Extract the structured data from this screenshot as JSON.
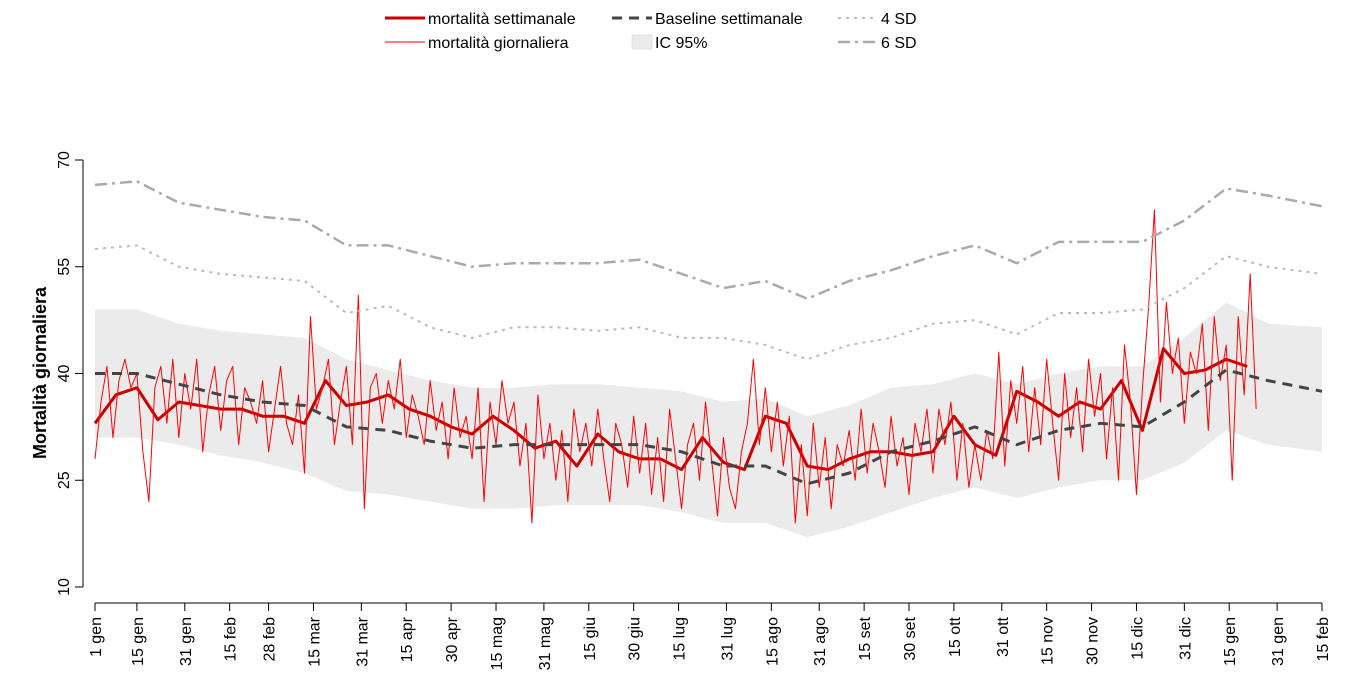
{
  "chart_data": {
    "type": "line",
    "ylabel": "Mortalità giornaliera",
    "xlim": [
      0,
      410
    ],
    "ylim": [
      10,
      70
    ],
    "yticks": [
      10,
      25,
      40,
      55,
      70
    ],
    "xticks": [
      {
        "value": 0,
        "label": "1 gen"
      },
      {
        "value": 14,
        "label": "15 gen"
      },
      {
        "value": 30,
        "label": "31 gen"
      },
      {
        "value": 45,
        "label": "15 feb"
      },
      {
        "value": 58,
        "label": "28 feb"
      },
      {
        "value": 73,
        "label": "15 mar"
      },
      {
        "value": 89,
        "label": "31 mar"
      },
      {
        "value": 104,
        "label": "15 apr"
      },
      {
        "value": 119,
        "label": "30 apr"
      },
      {
        "value": 134,
        "label": "15 mag"
      },
      {
        "value": 150,
        "label": "31 mag"
      },
      {
        "value": 165,
        "label": "15 giu"
      },
      {
        "value": 180,
        "label": "30 giu"
      },
      {
        "value": 195,
        "label": "15 lug"
      },
      {
        "value": 211,
        "label": "31 lug"
      },
      {
        "value": 226,
        "label": "15 ago"
      },
      {
        "value": 242,
        "label": "31 ago"
      },
      {
        "value": 257,
        "label": "15 set"
      },
      {
        "value": 272,
        "label": "30 set"
      },
      {
        "value": 287,
        "label": "15 ott"
      },
      {
        "value": 303,
        "label": "31 ott"
      },
      {
        "value": 318,
        "label": "15 nov"
      },
      {
        "value": 333,
        "label": "30 nov"
      },
      {
        "value": 348,
        "label": "15 dic"
      },
      {
        "value": 364,
        "label": "31 dic"
      },
      {
        "value": 379,
        "label": "15 gen"
      },
      {
        "value": 395,
        "label": "31 gen"
      },
      {
        "value": 410,
        "label": "15 feb"
      }
    ],
    "series": [
      {
        "name": "mortalità settimanale",
        "color": "#cc0000",
        "dash": "solid",
        "lwd": 3,
        "x": [
          0,
          7,
          14,
          21,
          28,
          35,
          42,
          49,
          56,
          63,
          70,
          77,
          84,
          91,
          98,
          105,
          112,
          119,
          126,
          133,
          140,
          147,
          154,
          161,
          168,
          175,
          182,
          189,
          196,
          203,
          210,
          217,
          224,
          231,
          238,
          245,
          252,
          259,
          266,
          273,
          280,
          287,
          294,
          301,
          308,
          315,
          322,
          329,
          336,
          343,
          350,
          357,
          364,
          371,
          378,
          385
        ],
        "values": [
          33,
          37,
          38,
          33.5,
          36,
          35.5,
          35,
          35,
          34,
          34,
          33,
          39,
          35.5,
          36,
          37,
          35,
          34,
          32.5,
          31.5,
          34,
          32,
          29.5,
          30.5,
          27,
          31.5,
          29,
          28,
          28,
          26.5,
          31,
          27.5,
          26.5,
          34,
          33,
          27,
          26.5,
          28,
          29,
          29,
          28.5,
          29,
          34,
          30,
          28.5,
          37.5,
          36,
          34,
          36,
          35,
          39,
          32,
          43.5,
          40,
          40.5,
          42,
          41
        ]
      },
      {
        "name": "mortalità giornaliera",
        "color": "#ff0000",
        "dash": "solid",
        "lwd": 1,
        "x": [
          0,
          2,
          4,
          6,
          8,
          10,
          12,
          14,
          16,
          18,
          20,
          22,
          24,
          26,
          28,
          30,
          32,
          34,
          36,
          38,
          40,
          42,
          44,
          46,
          48,
          50,
          52,
          54,
          56,
          58,
          60,
          62,
          64,
          66,
          68,
          70,
          72,
          74,
          76,
          78,
          80,
          82,
          84,
          86,
          88,
          90,
          92,
          94,
          96,
          98,
          100,
          102,
          104,
          106,
          108,
          110,
          112,
          114,
          116,
          118,
          120,
          122,
          124,
          126,
          128,
          130,
          132,
          134,
          136,
          138,
          140,
          142,
          144,
          146,
          148,
          150,
          152,
          154,
          156,
          158,
          160,
          162,
          164,
          166,
          168,
          170,
          172,
          174,
          176,
          178,
          180,
          182,
          184,
          186,
          188,
          190,
          192,
          194,
          196,
          198,
          200,
          202,
          204,
          206,
          208,
          210,
          212,
          214,
          216,
          218,
          220,
          222,
          224,
          226,
          228,
          230,
          232,
          234,
          236,
          238,
          240,
          242,
          244,
          246,
          248,
          250,
          252,
          254,
          256,
          258,
          260,
          262,
          264,
          266,
          268,
          270,
          272,
          274,
          276,
          278,
          280,
          282,
          284,
          286,
          288,
          290,
          292,
          294,
          296,
          298,
          300,
          302,
          304,
          306,
          308,
          310,
          312,
          314,
          316,
          318,
          320,
          322,
          324,
          326,
          328,
          330,
          332,
          334,
          336,
          338,
          340,
          342,
          344,
          346,
          348,
          350,
          352,
          354,
          356,
          358,
          360,
          362,
          364,
          366,
          368,
          370,
          372,
          374,
          376,
          378,
          380,
          382,
          384,
          386,
          388
        ],
        "values": [
          28,
          36,
          41,
          31,
          39,
          42,
          38,
          40,
          29,
          22,
          38,
          41,
          33,
          42,
          31,
          40,
          35,
          42,
          29,
          37,
          41,
          32,
          39,
          41,
          30,
          38,
          36,
          33,
          39,
          29,
          35,
          41,
          33,
          30,
          37,
          26,
          48,
          35,
          38,
          42,
          30,
          36,
          41,
          30,
          51,
          21,
          38,
          40,
          33,
          39,
          35,
          42,
          31,
          37,
          34,
          30,
          39,
          32,
          36,
          28,
          38,
          31,
          34,
          28,
          38,
          22,
          36,
          30,
          39,
          33,
          36,
          27,
          33,
          19,
          37,
          28,
          33,
          25,
          32,
          22,
          35,
          29,
          33,
          27,
          35,
          28,
          22,
          33,
          30,
          24,
          34,
          26,
          33,
          23,
          31,
          22,
          35,
          28,
          21,
          30,
          33,
          25,
          36,
          28,
          20,
          31,
          24,
          21,
          29,
          33,
          42,
          30,
          38,
          29,
          36,
          27,
          34,
          19,
          30,
          20,
          33,
          24,
          31,
          21,
          30,
          27,
          32,
          25,
          35,
          26,
          33,
          29,
          24,
          34,
          27,
          31,
          23,
          33,
          29,
          35,
          26,
          35,
          30,
          36,
          25,
          33,
          24,
          30,
          25,
          32,
          28,
          43,
          27,
          39,
          33,
          41,
          29,
          38,
          30,
          42,
          33,
          25,
          40,
          31,
          38,
          29,
          42,
          34,
          40,
          28,
          38,
          25,
          44,
          36,
          23,
          38,
          49,
          63,
          36,
          50,
          40,
          45,
          33,
          43,
          40,
          47,
          32,
          48,
          39,
          44,
          25,
          48,
          37,
          54,
          35
        ]
      },
      {
        "name": "Baseline settimanale",
        "color": "#444444",
        "dash": "dashed",
        "lwd": 3,
        "x": [
          0,
          14,
          28,
          42,
          56,
          70,
          84,
          98,
          112,
          126,
          140,
          154,
          168,
          182,
          196,
          210,
          224,
          238,
          252,
          266,
          280,
          294,
          308,
          322,
          336,
          350,
          364,
          378,
          392,
          410
        ],
        "values": [
          40,
          40,
          38.5,
          37,
          36,
          35.5,
          32.5,
          32,
          30.5,
          29.5,
          30,
          30,
          30,
          30,
          29,
          27,
          27,
          24.5,
          26,
          29,
          30.5,
          32.5,
          30,
          32,
          33,
          32.5,
          36,
          40.5,
          39,
          37.5
        ]
      },
      {
        "name": "IC 95%",
        "color": "#ebebeb",
        "dash": "band",
        "x": [
          0,
          14,
          28,
          42,
          56,
          70,
          84,
          98,
          112,
          126,
          140,
          154,
          168,
          182,
          196,
          210,
          224,
          238,
          252,
          266,
          280,
          294,
          308,
          322,
          336,
          350,
          364,
          378,
          392,
          410
        ],
        "upper": [
          49,
          49,
          47,
          46,
          45.5,
          45,
          42,
          40.5,
          39,
          38,
          38,
          38.5,
          38.5,
          38,
          37.5,
          36,
          36.5,
          34,
          35.5,
          38,
          38.5,
          40,
          38.5,
          40,
          41,
          41,
          45,
          50,
          47,
          46.5
        ],
        "lower": [
          31,
          31,
          30,
          28.5,
          27.5,
          26,
          23.5,
          23,
          22,
          21,
          21,
          21.5,
          21.5,
          21.5,
          20.5,
          19,
          19,
          17,
          18.5,
          20.5,
          22.5,
          24,
          22.5,
          24,
          25,
          25,
          27.5,
          32,
          30,
          29
        ]
      },
      {
        "name": "4 SD",
        "color": "#bbbbbb",
        "dash": "dotted",
        "lwd": 2,
        "x": [
          0,
          14,
          28,
          42,
          56,
          70,
          84,
          98,
          112,
          126,
          140,
          154,
          168,
          182,
          196,
          210,
          224,
          238,
          252,
          266,
          280,
          294,
          308,
          322,
          336,
          350,
          364,
          378,
          392,
          410
        ],
        "values": [
          57.5,
          58,
          55,
          54,
          53.5,
          53,
          48.5,
          49.5,
          46.5,
          45,
          46.5,
          46.5,
          46,
          46.5,
          45,
          45,
          44,
          42,
          44,
          45,
          47,
          47.5,
          45.5,
          48.5,
          48.5,
          49,
          52,
          56.5,
          55,
          54
        ]
      },
      {
        "name": "6 SD",
        "color": "#aaaaaa",
        "dash": "dotdash",
        "lwd": 2.5,
        "x": [
          0,
          14,
          28,
          42,
          56,
          70,
          84,
          98,
          112,
          126,
          140,
          154,
          168,
          182,
          196,
          210,
          224,
          238,
          252,
          266,
          280,
          294,
          308,
          322,
          336,
          350,
          364,
          378,
          392,
          410
        ],
        "values": [
          66.5,
          67,
          64,
          63,
          62,
          61.5,
          58,
          58,
          56.5,
          55,
          55.5,
          55.5,
          55.5,
          56,
          54,
          52,
          53,
          50.5,
          53,
          54.5,
          56.5,
          58,
          55.5,
          58.5,
          58.5,
          58.5,
          61.5,
          66,
          65,
          63.5
        ]
      }
    ]
  }
}
